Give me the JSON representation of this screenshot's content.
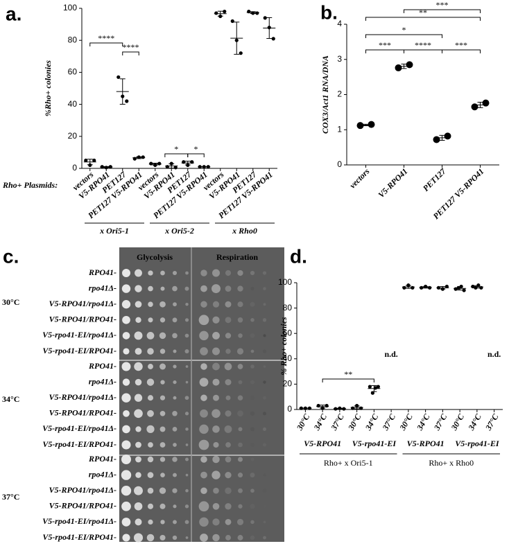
{
  "chart_data": [
    {
      "panel": "a.",
      "type": "dotplot",
      "ylabel": "%Rho+ colonies",
      "categories_title": "Rho+ Plasmids:",
      "categories": [
        "vectors",
        "V5-RPO41",
        "PET127",
        "PET127 V5-RPO41",
        "vectors",
        "V5-RPO41",
        "PET127",
        "PET127 V5-RPO41",
        "vectors",
        "V5-RPO41",
        "PET127",
        "PET127 V5-RPO41"
      ],
      "groups": [
        "x Ori5-1",
        "x Ori5-2",
        "x Rho0"
      ],
      "values": [
        [
          5,
          2,
          5
        ],
        [
          1,
          0.5,
          1
        ],
        [
          57,
          45,
          42
        ],
        [
          6,
          7,
          7
        ],
        [
          3,
          2,
          3
        ],
        [
          1,
          3,
          0.5
        ],
        [
          4,
          2,
          4
        ],
        [
          1,
          1,
          1
        ],
        [
          97,
          95,
          98
        ],
        [
          92,
          80,
          72
        ],
        [
          98,
          97,
          97
        ],
        [
          94,
          88,
          81
        ]
      ],
      "ylim": [
        0,
        100
      ],
      "yticks": [
        0,
        20,
        40,
        60,
        80,
        100
      ],
      "color": "#000000",
      "annotations": [
        "****",
        "****",
        "*",
        "*"
      ]
    },
    {
      "panel": "b.",
      "type": "dotplot",
      "ylabel": "COX3/Act1 RNA/DNA",
      "categories": [
        "vectors",
        "V5-RPO41",
        "PET127",
        "PET127 V5-RPO41"
      ],
      "values": [
        [
          1.12,
          1.15
        ],
        [
          2.76,
          2.85
        ],
        [
          0.72,
          0.82
        ],
        [
          1.65,
          1.76
        ]
      ],
      "ylim": [
        0,
        4
      ],
      "yticks": [
        0,
        1,
        2,
        3,
        4
      ],
      "color": "#000000",
      "annotations": [
        "***",
        "****",
        "***",
        "*",
        "**",
        "***"
      ]
    },
    {
      "panel": "d.",
      "type": "dotplot",
      "ylabel": "% Rho+ colonies",
      "categories": [
        "30°C",
        "34°C",
        "37°C",
        "30°C",
        "34°C",
        "37°C",
        "30°C",
        "34°C",
        "37°C",
        "30°C",
        "34°C",
        "37°C"
      ],
      "strains": [
        "V5-RPO41",
        "V5-rpo41-EI",
        "V5-RPO41",
        "V5-rpo41-EI"
      ],
      "groups": [
        "Rho+ x Ori5-1",
        "Rho+ x Rho0"
      ],
      "values": [
        [
          1,
          1,
          1
        ],
        [
          3,
          1,
          3
        ],
        [
          0.5,
          1,
          0.5
        ],
        [
          1,
          3,
          1
        ],
        [
          18,
          13,
          17,
          18
        ],
        null,
        [
          96,
          98,
          96
        ],
        [
          96,
          97,
          96
        ],
        [
          96,
          95,
          97
        ],
        [
          95,
          96,
          97,
          94
        ],
        [
          97,
          96,
          98,
          96
        ],
        null
      ],
      "ylim": [
        0,
        100
      ],
      "yticks": [
        0,
        20,
        40,
        60,
        80,
        100
      ],
      "color": "#000000",
      "annotations": [
        "**",
        "n.d.",
        "n.d."
      ]
    }
  ],
  "figure_c": {
    "panel": "c.",
    "columns": [
      "Glycolysis",
      "Respiration"
    ],
    "temperatures": [
      "30°C",
      "34°C",
      "37°C"
    ],
    "rows": [
      "RPO41-",
      "rpo41Δ-",
      "V5-RPO41/rpo41Δ-",
      "V5-RPO41/RPO41-",
      "V5-rpo41-EI/rpo41Δ-",
      "V5-rpo41-EI/RPO41-",
      "RPO41-",
      "rpo41Δ-",
      "V5-RPO41/rpo41Δ-",
      "V5-RPO41/RPO41-",
      "V5-rpo41-EI/rpo41Δ-",
      "V5-rpo41-EI/RPO41-",
      "RPO41-",
      "rpo41Δ-",
      "V5-RPO41/rpo41Δ-",
      "V5-RPO41/RPO41-",
      "V5-rpo41-EI/rpo41Δ-",
      "V5-rpo41-EI/RPO41-"
    ]
  }
}
